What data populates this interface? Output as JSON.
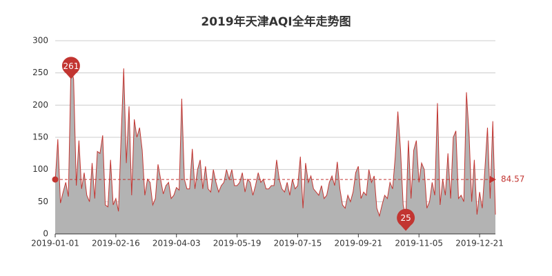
{
  "chart_data": {
    "type": "line",
    "title": "2019年天津AQI全年走势图",
    "categories": [
      "2019-01-01",
      null,
      null,
      null,
      null,
      null,
      null,
      null,
      null,
      null,
      null,
      null,
      null,
      null,
      null,
      null,
      null,
      null,
      null,
      null,
      null,
      null,
      null,
      "2019-02-16",
      null,
      null,
      null,
      null,
      null,
      null,
      null,
      null,
      null,
      null,
      null,
      null,
      null,
      null,
      null,
      null,
      null,
      null,
      null,
      null,
      null,
      null,
      "2019-04-03",
      null,
      null,
      null,
      null,
      null,
      null,
      null,
      null,
      null,
      null,
      null,
      null,
      null,
      null,
      null,
      null,
      null,
      null,
      null,
      null,
      null,
      null,
      "2019-05-19",
      null,
      null,
      null,
      null,
      null,
      null,
      null,
      null,
      null,
      null,
      null,
      null,
      null,
      null,
      null,
      null,
      null,
      null,
      null,
      null,
      null,
      null,
      "2019-07-15",
      null,
      null,
      null,
      null,
      null,
      null,
      null,
      null,
      null,
      null,
      null,
      null,
      null,
      null,
      null,
      null,
      null,
      null,
      null,
      null,
      null,
      null,
      "2019-09-21",
      null,
      null,
      null,
      null,
      null,
      null,
      null,
      null,
      null,
      null,
      null,
      null,
      null,
      null,
      null,
      null,
      null,
      null,
      null,
      null,
      null,
      null,
      "2019-11-05",
      null,
      null,
      null,
      null,
      null,
      null,
      null,
      null,
      null,
      null,
      null,
      null,
      null,
      null,
      null,
      null,
      null,
      null,
      null,
      null,
      null,
      null,
      "2019-12-21",
      null,
      null,
      null,
      null,
      null,
      null
    ],
    "values": [
      82,
      147,
      48,
      65,
      80,
      58,
      261,
      240,
      75,
      145,
      70,
      95,
      60,
      50,
      110,
      55,
      128,
      125,
      153,
      45,
      42,
      115,
      45,
      55,
      35,
      150,
      257,
      110,
      198,
      60,
      178,
      150,
      165,
      130,
      60,
      85,
      80,
      45,
      55,
      108,
      85,
      62,
      75,
      80,
      55,
      60,
      72,
      68,
      210,
      85,
      70,
      70,
      132,
      70,
      100,
      115,
      70,
      105,
      70,
      65,
      100,
      80,
      65,
      75,
      80,
      100,
      85,
      100,
      75,
      75,
      80,
      95,
      65,
      85,
      80,
      60,
      75,
      95,
      80,
      85,
      70,
      70,
      75,
      75,
      115,
      85,
      70,
      65,
      80,
      60,
      85,
      70,
      75,
      120,
      40,
      110,
      80,
      90,
      70,
      65,
      60,
      75,
      55,
      60,
      80,
      90,
      75,
      112,
      70,
      45,
      40,
      60,
      50,
      65,
      95,
      105,
      55,
      65,
      60,
      100,
      80,
      90,
      40,
      28,
      45,
      60,
      55,
      80,
      70,
      120,
      190,
      130,
      45,
      25,
      145,
      55,
      130,
      145,
      80,
      110,
      100,
      40,
      50,
      80,
      60,
      203,
      45,
      85,
      60,
      125,
      55,
      150,
      160,
      55,
      60,
      50,
      220,
      155,
      50,
      115,
      30,
      65,
      40,
      100,
      165,
      55,
      175,
      30
    ],
    "color": "#c23531",
    "area_color": "#b3b3b3",
    "ylim": [
      0,
      300
    ],
    "yticks": [
      0,
      50,
      100,
      150,
      200,
      250,
      300
    ],
    "grid": true,
    "mark_points": [
      261,
      25
    ],
    "mean_line": 84.57
  }
}
